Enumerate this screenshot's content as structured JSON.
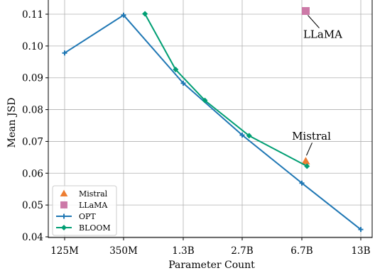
{
  "chart_data": {
    "type": "line",
    "xlabel": "Parameter Count",
    "ylabel": "Mean JSD",
    "x_ticks": [
      "125M",
      "350M",
      "1.3B",
      "2.7B",
      "6.7B",
      "13B"
    ],
    "ylim": [
      0.04,
      0.115
    ],
    "y_ticks": [
      "0.04",
      "0.05",
      "0.06",
      "0.07",
      "0.08",
      "0.09",
      "0.10",
      "0.11"
    ],
    "grid": true,
    "legend_position": "bottom-left",
    "series": [
      {
        "name": "Mistral",
        "type": "scatter",
        "marker": "triangle",
        "color": "#ED7D31",
        "x": [
          7.0
        ],
        "y": [
          0.0638
        ]
      },
      {
        "name": "LLaMA",
        "type": "scatter",
        "marker": "square",
        "color": "#CC79A7",
        "x": [
          7.0
        ],
        "y": [
          0.111
        ]
      },
      {
        "name": "OPT",
        "type": "line",
        "marker": "plus",
        "color": "#1F77B4",
        "x": [
          0.125,
          0.35,
          1.3,
          2.7,
          6.7,
          13.0
        ],
        "y": [
          0.0978,
          0.1097,
          0.0883,
          0.072,
          0.0569,
          0.0423
        ]
      },
      {
        "name": "BLOOM",
        "type": "line",
        "marker": "diamond",
        "color": "#009E73",
        "x": [
          0.56,
          1.1,
          1.7,
          3.0,
          7.1
        ],
        "y": [
          0.1101,
          0.0926,
          0.0829,
          0.0718,
          0.0622
        ]
      }
    ],
    "annotations": [
      {
        "text": "Mistral",
        "series": "Mistral"
      },
      {
        "text": "LLaMA",
        "series": "LLaMA"
      }
    ]
  }
}
